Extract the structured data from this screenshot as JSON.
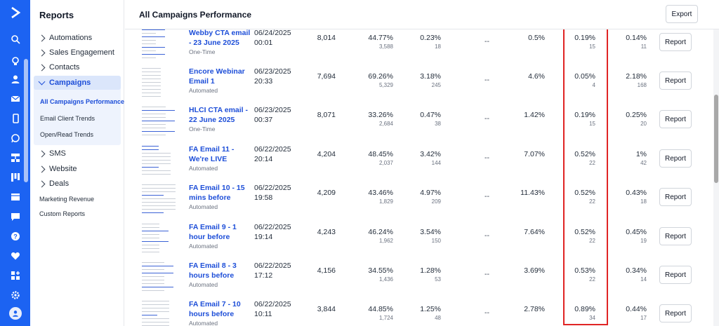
{
  "sidebar": {
    "title": "Reports",
    "items": [
      {
        "label": "Automations"
      },
      {
        "label": "Sales Engagement"
      },
      {
        "label": "Contacts"
      },
      {
        "label": "Campaigns"
      },
      {
        "label": "SMS"
      },
      {
        "label": "Website"
      },
      {
        "label": "Deals"
      }
    ],
    "campaign_subitems": [
      {
        "label": "All Campaigns Performance"
      },
      {
        "label": "Email Client Trends"
      },
      {
        "label": "Open/Read Trends"
      }
    ],
    "extra_links": [
      {
        "label": "Marketing Revenue"
      },
      {
        "label": "Custom Reports"
      }
    ]
  },
  "header": {
    "title": "All Campaigns Performance",
    "export_label": "Export"
  },
  "rows": [
    {
      "name": "Webby CTA email - 23 June 2025",
      "type": "One-Time",
      "date": "06/24/2025",
      "time": "00:01",
      "sent": "8,014",
      "open_pct": "44.77%",
      "open_count": "3,588",
      "click_pct": "0.23%",
      "click_count": "18",
      "dash": "--",
      "bounce": "0.5%",
      "hl_pct": "0.19%",
      "hl_count": "15",
      "last_pct": "0.14%",
      "last_count": "11",
      "report_label": "Report"
    },
    {
      "name": "Encore Webinar Email 1",
      "type": "Automated",
      "date": "06/23/2025",
      "time": "20:33",
      "sent": "7,694",
      "open_pct": "69.26%",
      "open_count": "5,329",
      "click_pct": "3.18%",
      "click_count": "245",
      "dash": "--",
      "bounce": "4.6%",
      "hl_pct": "0.05%",
      "hl_count": "4",
      "last_pct": "2.18%",
      "last_count": "168",
      "report_label": "Report"
    },
    {
      "name": "HLCI CTA email - 22 June 2025",
      "type": "One-Time",
      "date": "06/23/2025",
      "time": "00:37",
      "sent": "8,071",
      "open_pct": "33.26%",
      "open_count": "2,684",
      "click_pct": "0.47%",
      "click_count": "38",
      "dash": "--",
      "bounce": "1.42%",
      "hl_pct": "0.19%",
      "hl_count": "15",
      "last_pct": "0.25%",
      "last_count": "20",
      "report_label": "Report"
    },
    {
      "name": "FA Email 11 - We're LIVE",
      "type": "Automated",
      "date": "06/22/2025",
      "time": "20:14",
      "sent": "4,204",
      "open_pct": "48.45%",
      "open_count": "2,037",
      "click_pct": "3.42%",
      "click_count": "144",
      "dash": "--",
      "bounce": "7.07%",
      "hl_pct": "0.52%",
      "hl_count": "22",
      "last_pct": "1%",
      "last_count": "42",
      "report_label": "Report"
    },
    {
      "name": "FA Email 10 - 15 mins before",
      "type": "Automated",
      "date": "06/22/2025",
      "time": "19:58",
      "sent": "4,209",
      "open_pct": "43.46%",
      "open_count": "1,829",
      "click_pct": "4.97%",
      "click_count": "209",
      "dash": "--",
      "bounce": "11.43%",
      "hl_pct": "0.52%",
      "hl_count": "22",
      "last_pct": "0.43%",
      "last_count": "18",
      "report_label": "Report"
    },
    {
      "name": "FA Email 9 - 1 hour before",
      "type": "Automated",
      "date": "06/22/2025",
      "time": "19:14",
      "sent": "4,243",
      "open_pct": "46.24%",
      "open_count": "1,962",
      "click_pct": "3.54%",
      "click_count": "150",
      "dash": "--",
      "bounce": "7.64%",
      "hl_pct": "0.52%",
      "hl_count": "22",
      "last_pct": "0.45%",
      "last_count": "19",
      "report_label": "Report"
    },
    {
      "name": "FA Email 8 - 3 hours before",
      "type": "Automated",
      "date": "06/22/2025",
      "time": "17:12",
      "sent": "4,156",
      "open_pct": "34.55%",
      "open_count": "1,436",
      "click_pct": "1.28%",
      "click_count": "53",
      "dash": "--",
      "bounce": "3.69%",
      "hl_pct": "0.53%",
      "hl_count": "22",
      "last_pct": "0.34%",
      "last_count": "14",
      "report_label": "Report"
    },
    {
      "name": "FA Email 7 - 10 hours before",
      "type": "Automated",
      "date": "06/22/2025",
      "time": "10:11",
      "sent": "3,844",
      "open_pct": "44.85%",
      "open_count": "1,724",
      "click_pct": "1.25%",
      "click_count": "48",
      "dash": "--",
      "bounce": "2.78%",
      "hl_pct": "0.89%",
      "hl_count": "34",
      "last_pct": "0.44%",
      "last_count": "17",
      "report_label": "Report"
    }
  ]
}
